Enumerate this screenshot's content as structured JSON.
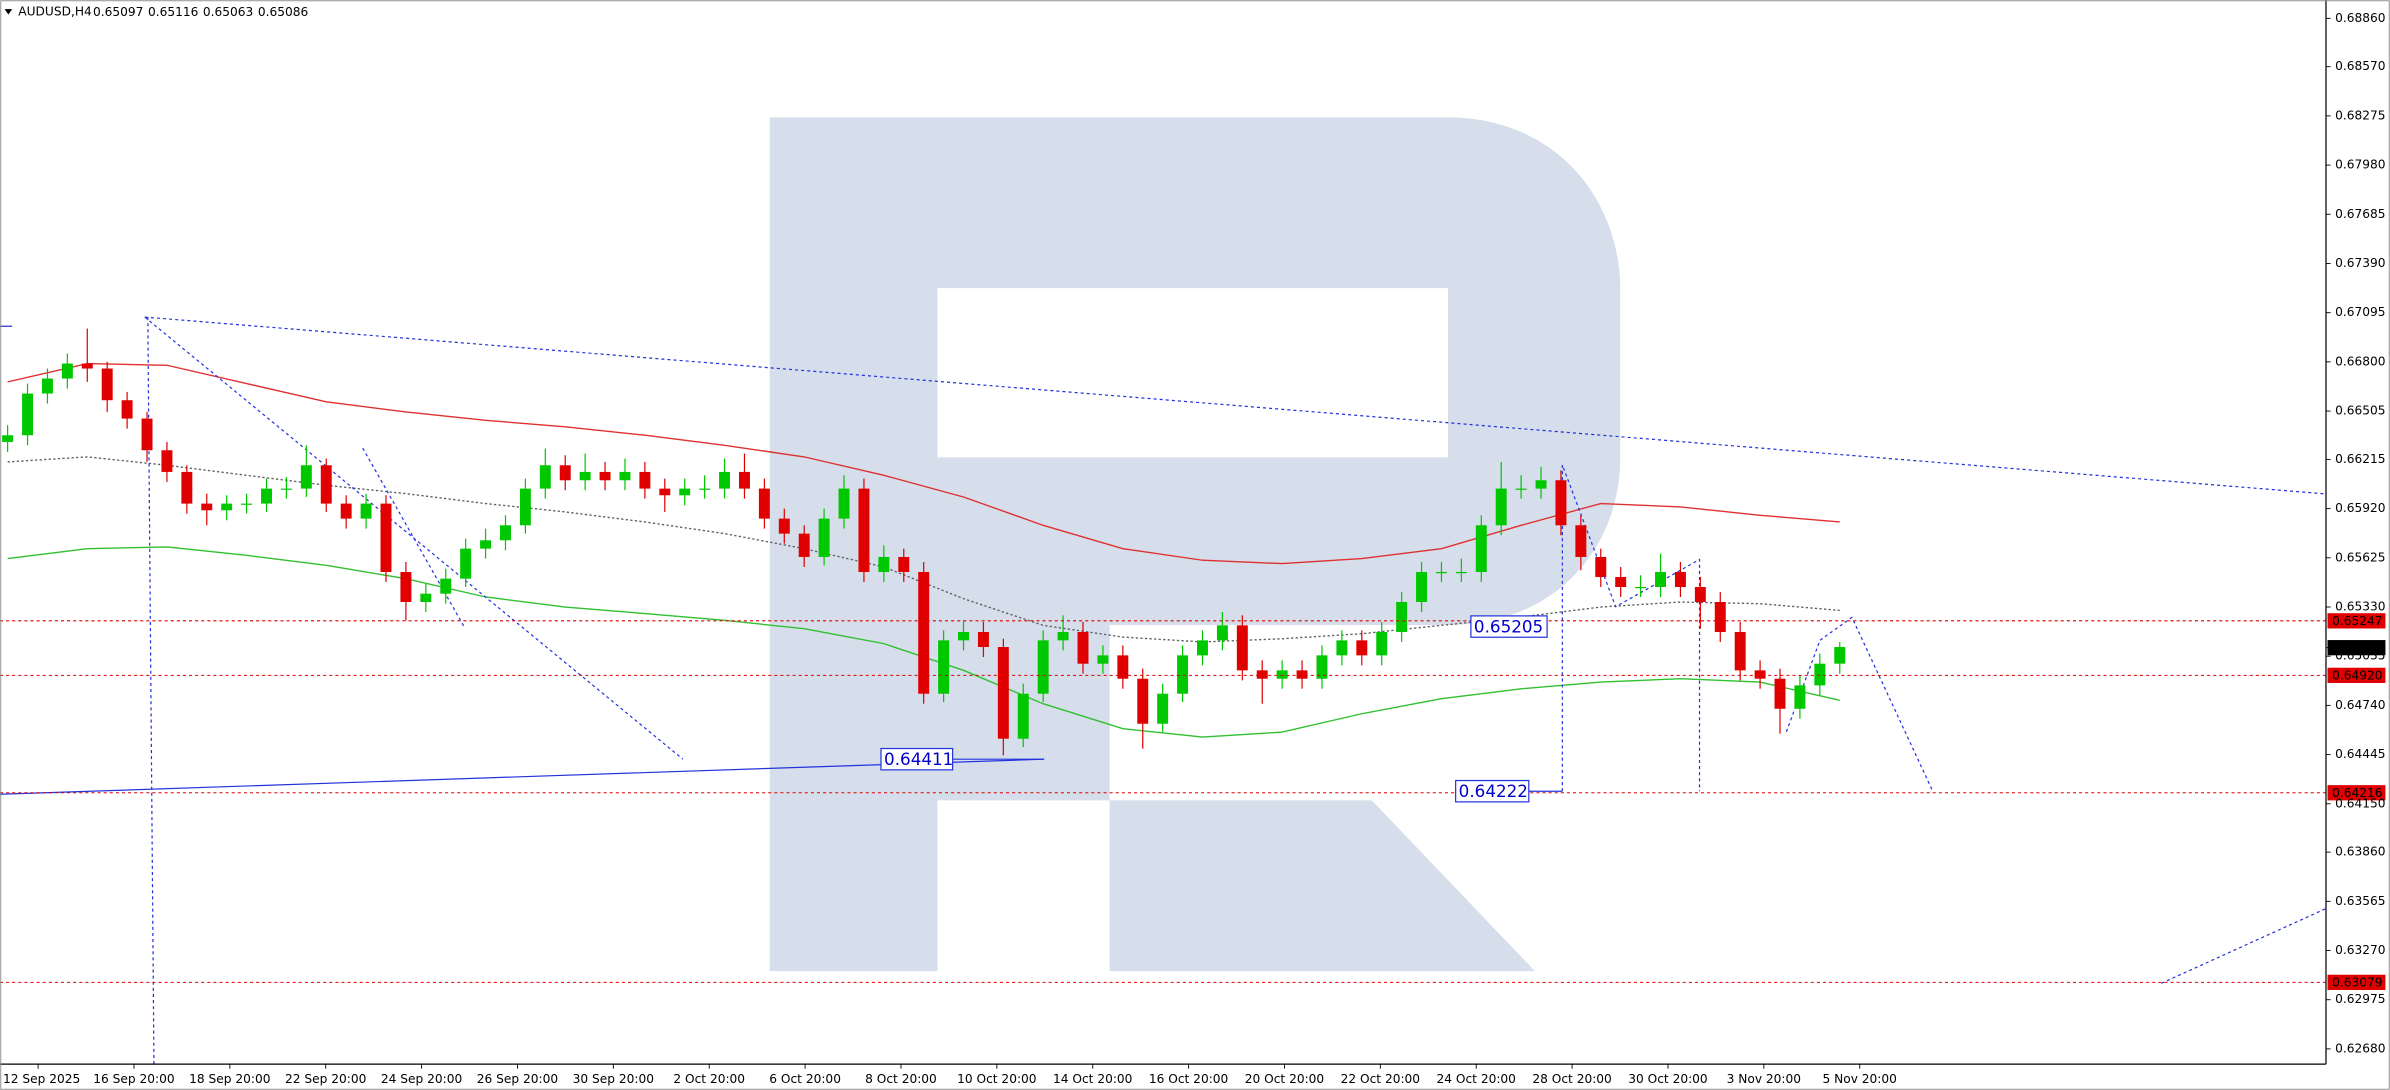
{
  "chart_data": {
    "type": "candlestick",
    "symbol": "AUDUSD,H4",
    "header_ohlc": [
      "0.65097",
      "0.65116",
      "0.65063",
      "0.65086"
    ],
    "up_color": "#00c800",
    "down_color": "#e00000",
    "open": [
      0.6632,
      0.6636,
      0.6661,
      0.667,
      0.6679,
      0.6676,
      0.6657,
      0.6646,
      0.6627,
      0.6614,
      0.6595,
      0.6591,
      0.6595,
      0.6595,
      0.6604,
      0.6604,
      0.6618,
      0.6595,
      0.6586,
      0.6595,
      0.6554,
      0.6536,
      0.6541,
      0.655,
      0.6568,
      0.6573,
      0.6582,
      0.6604,
      0.6618,
      0.6609,
      0.6614,
      0.6609,
      0.6614,
      0.6604,
      0.66,
      0.6604,
      0.6604,
      0.6614,
      0.6604,
      0.6586,
      0.6577,
      0.6563,
      0.6586,
      0.6604,
      0.6554,
      0.6563,
      0.6554,
      0.6481,
      0.6513,
      0.6518,
      0.6509,
      0.6454,
      0.6481,
      0.6513,
      0.6518,
      0.6499,
      0.6504,
      0.649,
      0.6463,
      0.6481,
      0.6504,
      0.6513,
      0.6522,
      0.6495,
      0.649,
      0.6495,
      0.649,
      0.6504,
      0.6513,
      0.6504,
      0.6518,
      0.6536,
      0.6554,
      0.6554,
      0.6554,
      0.6582,
      0.6604,
      0.6604,
      0.6609,
      0.6582,
      0.6563,
      0.6551,
      0.6545,
      0.6545,
      0.6554,
      0.6545,
      0.6536,
      0.6518,
      0.6495,
      0.649,
      0.6472,
      0.6486,
      0.6499
    ],
    "high": [
      0.6642,
      0.6667,
      0.6676,
      0.6685,
      0.67,
      0.668,
      0.6662,
      0.665,
      0.6632,
      0.6618,
      0.6601,
      0.66,
      0.6601,
      0.661,
      0.6611,
      0.663,
      0.6622,
      0.66,
      0.6601,
      0.66,
      0.656,
      0.6547,
      0.6556,
      0.6574,
      0.658,
      0.6588,
      0.661,
      0.6628,
      0.6624,
      0.6625,
      0.662,
      0.6622,
      0.662,
      0.661,
      0.661,
      0.6612,
      0.6622,
      0.6625,
      0.661,
      0.6592,
      0.6582,
      0.6592,
      0.6612,
      0.661,
      0.657,
      0.6568,
      0.656,
      0.6519,
      0.6525,
      0.6524,
      0.6514,
      0.6487,
      0.6519,
      0.6528,
      0.6524,
      0.651,
      0.651,
      0.6496,
      0.6487,
      0.651,
      0.6519,
      0.653,
      0.6528,
      0.6501,
      0.6501,
      0.6501,
      0.651,
      0.6519,
      0.6519,
      0.6524,
      0.6542,
      0.656,
      0.656,
      0.6562,
      0.6588,
      0.662,
      0.6612,
      0.6617,
      0.6615,
      0.6588,
      0.6568,
      0.6557,
      0.6552,
      0.6565,
      0.656,
      0.6551,
      0.6542,
      0.6524,
      0.6501,
      0.6496,
      0.6492,
      0.6505,
      0.6512
    ],
    "low": [
      0.6626,
      0.663,
      0.6655,
      0.6664,
      0.6668,
      0.665,
      0.664,
      0.662,
      0.6608,
      0.6589,
      0.6582,
      0.6585,
      0.6589,
      0.659,
      0.6598,
      0.6599,
      0.659,
      0.658,
      0.658,
      0.6548,
      0.6525,
      0.653,
      0.6535,
      0.6545,
      0.6562,
      0.6567,
      0.6577,
      0.6598,
      0.6603,
      0.6603,
      0.6603,
      0.6603,
      0.6598,
      0.659,
      0.6594,
      0.6598,
      0.6598,
      0.6598,
      0.658,
      0.6571,
      0.6557,
      0.6558,
      0.658,
      0.6548,
      0.6548,
      0.6548,
      0.6475,
      0.6476,
      0.6507,
      0.6503,
      0.6444,
      0.6449,
      0.6476,
      0.6507,
      0.6493,
      0.6493,
      0.6484,
      0.6448,
      0.6458,
      0.6476,
      0.6498,
      0.6507,
      0.6489,
      0.6475,
      0.6484,
      0.6484,
      0.6484,
      0.6498,
      0.6498,
      0.6498,
      0.6512,
      0.653,
      0.6548,
      0.6548,
      0.6548,
      0.6576,
      0.6598,
      0.6598,
      0.6576,
      0.6555,
      0.6545,
      0.6539,
      0.6539,
      0.6539,
      0.6539,
      0.652,
      0.6512,
      0.6489,
      0.6484,
      0.6457,
      0.6466,
      0.648,
      0.6493
    ],
    "close": [
      0.6636,
      0.6661,
      0.667,
      0.6679,
      0.6676,
      0.6657,
      0.6646,
      0.6627,
      0.6614,
      0.6595,
      0.6591,
      0.6595,
      0.6595,
      0.6604,
      0.6604,
      0.6618,
      0.6595,
      0.6586,
      0.6595,
      0.6554,
      0.6536,
      0.6541,
      0.655,
      0.6568,
      0.6573,
      0.6582,
      0.6604,
      0.6618,
      0.6609,
      0.6614,
      0.6609,
      0.6614,
      0.6604,
      0.66,
      0.6604,
      0.6604,
      0.6614,
      0.6604,
      0.6586,
      0.6577,
      0.6563,
      0.6586,
      0.6604,
      0.6554,
      0.6563,
      0.6554,
      0.6481,
      0.6513,
      0.6518,
      0.6509,
      0.6454,
      0.6481,
      0.6513,
      0.6518,
      0.6499,
      0.6504,
      0.649,
      0.6463,
      0.6481,
      0.6504,
      0.6513,
      0.6522,
      0.6495,
      0.649,
      0.6495,
      0.649,
      0.6504,
      0.6513,
      0.6504,
      0.6518,
      0.6536,
      0.6554,
      0.6554,
      0.6554,
      0.6582,
      0.6604,
      0.6604,
      0.6609,
      0.6582,
      0.6563,
      0.6551,
      0.6545,
      0.6545,
      0.6554,
      0.6545,
      0.6536,
      0.6518,
      0.6495,
      0.649,
      0.6472,
      0.6486,
      0.6499,
      0.6509
    ],
    "overlays": [
      {
        "color": "#e03030",
        "dash": false,
        "values": [
          0.6668,
          0.6679,
          0.6678,
          0.6667,
          0.6656,
          0.665,
          0.6645,
          0.6641,
          0.6636,
          0.663,
          0.6623,
          0.6612,
          0.6599,
          0.6582,
          0.6568,
          0.6561,
          0.6559,
          0.6562,
          0.6568,
          0.6582,
          0.6595,
          0.6593,
          0.6588,
          0.6584
        ]
      },
      {
        "color": "#30c030",
        "dash": false,
        "values": [
          0.6562,
          0.6568,
          0.6569,
          0.6564,
          0.6558,
          0.655,
          0.6539,
          0.6533,
          0.6529,
          0.6525,
          0.652,
          0.6511,
          0.6495,
          0.6475,
          0.646,
          0.6455,
          0.6458,
          0.6469,
          0.6478,
          0.6484,
          0.6488,
          0.649,
          0.6488,
          0.6477
        ]
      },
      {
        "color": "#606060",
        "dash": true,
        "values": [
          0.662,
          0.6623,
          0.6618,
          0.6612,
          0.6606,
          0.6601,
          0.6595,
          0.659,
          0.6584,
          0.6577,
          0.6568,
          0.6557,
          0.6538,
          0.6522,
          0.6515,
          0.6512,
          0.6514,
          0.6517,
          0.6522,
          0.6527,
          0.6533,
          0.6536,
          0.6535,
          0.6531
        ]
      }
    ],
    "levels": [
      0.65247,
      {
        "value": 0.6492,
        "label": "0.64920"
      },
      0.64216,
      0.63079
    ],
    "level_color": "#e00000",
    "current_price": 0.65086,
    "annotations": [
      "0.64411",
      "0.65205",
      "0.64222"
    ],
    "ylim": [
      0.62589,
      0.6897
    ],
    "yticks": [
      {
        "value": 0.6886,
        "label": "0.68860"
      },
      {
        "value": 0.6857,
        "label": "0.68570"
      },
      0.68275,
      {
        "value": 0.6798,
        "label": "0.67980"
      },
      0.67685,
      {
        "value": 0.6739,
        "label": "0.67390"
      },
      0.67095,
      {
        "value": 0.668,
        "label": "0.66800"
      },
      0.66505,
      0.66215,
      {
        "value": 0.6592,
        "label": "0.65920"
      },
      0.65625,
      {
        "value": 0.6533,
        "label": "0.65330"
      },
      0.65035,
      {
        "value": 0.6474,
        "label": "0.64740"
      },
      0.64445,
      {
        "value": 0.6415,
        "label": "0.64150"
      },
      {
        "value": 0.6386,
        "label": "0.63860"
      },
      0.63565,
      {
        "value": 0.6327,
        "label": "0.63270"
      },
      0.62975,
      {
        "value": 0.6268,
        "label": "0.62680"
      }
    ],
    "xticks": [
      "12 Sep 2025",
      "16 Sep 20:00",
      "18 Sep 20:00",
      "22 Sep 20:00",
      "24 Sep 20:00",
      "26 Sep 20:00",
      "30 Sep 20:00",
      "2 Oct 20:00",
      "6 Oct 20:00",
      "8 Oct 20:00",
      "10 Oct 20:00",
      "14 Oct 20:00",
      "16 Oct 20:00",
      "20 Oct 20:00",
      "22 Oct 20:00",
      "24 Oct 20:00",
      "28 Oct 20:00",
      "30 Oct 20:00",
      "3 Nov 20:00",
      "5 Nov 20:00"
    ]
  }
}
